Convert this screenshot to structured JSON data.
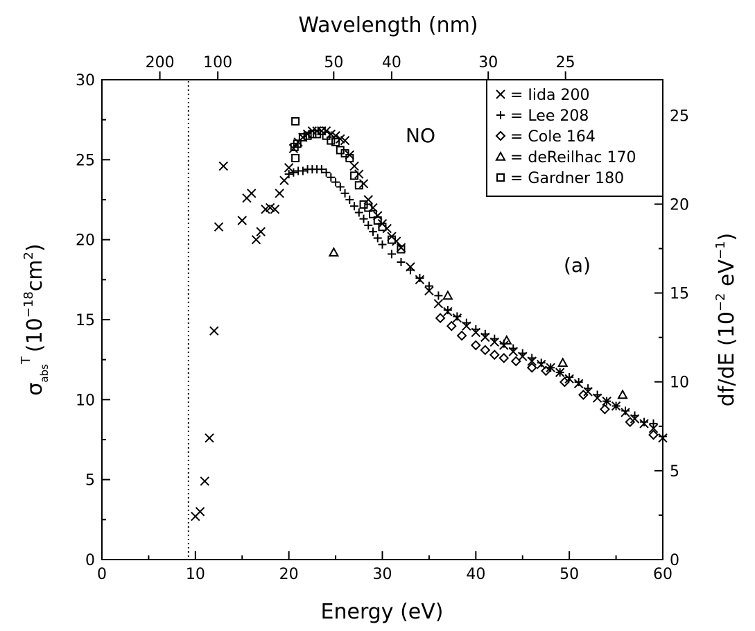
{
  "chart_data": {
    "type": "scatter",
    "xlabel": "Energy (eV)",
    "top_xlabel": "Wavelength (nm)",
    "ylabel_left": {
      "base": "σ",
      "sub": "abs",
      "sup": "T",
      "units_pre": "(10",
      "units_exp": "−18",
      "units_mid": "cm",
      "units_sq": "2",
      "units_post": ")"
    },
    "ylabel_right": {
      "pre": "df/dE (10",
      "exp1": "−2",
      "mid": " eV",
      "exp2": "−1",
      "post": ")"
    },
    "xlim": [
      0,
      60
    ],
    "ylim": [
      0,
      30
    ],
    "ylim_right": [
      0,
      27
    ],
    "x_ticks": [
      "0",
      "10",
      "20",
      "30",
      "40",
      "50",
      "60"
    ],
    "y_ticks": [
      "0",
      "5",
      "10",
      "15",
      "20",
      "25",
      "30"
    ],
    "y_right_ticks": [
      "0",
      "5",
      "10",
      "15",
      "20",
      "25"
    ],
    "top_ticks": [
      {
        "label": "200",
        "nm": 200
      },
      {
        "label": "100",
        "nm": 100
      },
      {
        "label": "50",
        "nm": 50
      },
      {
        "label": "40",
        "nm": 40
      },
      {
        "label": "30",
        "nm": 30
      },
      {
        "label": "25",
        "nm": 25
      }
    ],
    "ionization_threshold_x": 9.26,
    "annotations": {
      "molecule": "NO",
      "panel": "(a)"
    },
    "legend_placement": "top-right",
    "series": [
      {
        "name": "= Iida 200",
        "marker": "x",
        "points": [
          [
            10.0,
            2.7
          ],
          [
            10.5,
            3.0
          ],
          [
            11.0,
            4.9
          ],
          [
            11.5,
            7.6
          ],
          [
            12.0,
            14.3
          ],
          [
            12.5,
            20.8
          ],
          [
            13.0,
            24.6
          ],
          [
            15.0,
            21.2
          ],
          [
            15.5,
            22.6
          ],
          [
            16.0,
            22.9
          ],
          [
            16.5,
            20.0
          ],
          [
            17.0,
            20.5
          ],
          [
            17.5,
            21.9
          ],
          [
            18.0,
            22.0
          ],
          [
            18.5,
            21.9
          ],
          [
            19.0,
            22.9
          ],
          [
            19.5,
            23.7
          ],
          [
            20.0,
            24.5
          ],
          [
            20.5,
            25.7
          ],
          [
            21.0,
            26.1
          ],
          [
            21.5,
            26.4
          ],
          [
            22.0,
            26.6
          ],
          [
            22.5,
            26.8
          ],
          [
            23.0,
            26.8
          ],
          [
            23.5,
            26.8
          ],
          [
            24.0,
            26.8
          ],
          [
            24.5,
            26.6
          ],
          [
            25.0,
            26.5
          ],
          [
            25.5,
            26.3
          ],
          [
            26.0,
            26.2
          ],
          [
            26.5,
            25.3
          ],
          [
            27.0,
            24.6
          ],
          [
            27.5,
            24.1
          ],
          [
            28.0,
            23.5
          ],
          [
            28.5,
            22.5
          ],
          [
            29.0,
            22.0
          ],
          [
            29.5,
            21.5
          ],
          [
            30.0,
            21.0
          ],
          [
            30.5,
            20.7
          ],
          [
            31.0,
            20.2
          ],
          [
            31.5,
            19.9
          ],
          [
            32.0,
            19.5
          ],
          [
            33.0,
            18.3
          ],
          [
            34.0,
            17.5
          ],
          [
            35.0,
            16.8
          ],
          [
            36.0,
            16.0
          ],
          [
            37.0,
            15.5
          ],
          [
            38.0,
            15.1
          ],
          [
            39.0,
            14.6
          ],
          [
            40.0,
            14.2
          ],
          [
            41.0,
            13.9
          ],
          [
            42.0,
            13.6
          ],
          [
            43.0,
            13.4
          ],
          [
            44.0,
            13.0
          ],
          [
            45.0,
            12.7
          ],
          [
            46.0,
            12.4
          ],
          [
            47.0,
            12.2
          ],
          [
            48.0,
            12.0
          ],
          [
            49.0,
            11.7
          ],
          [
            50.0,
            11.3
          ],
          [
            51.0,
            11.0
          ],
          [
            52.0,
            10.5
          ],
          [
            53.0,
            10.1
          ],
          [
            54.0,
            9.9
          ],
          [
            55.0,
            9.6
          ],
          [
            56.0,
            9.2
          ],
          [
            57.0,
            8.8
          ],
          [
            58.0,
            8.5
          ],
          [
            59.0,
            8.2
          ],
          [
            60.0,
            7.6
          ]
        ]
      },
      {
        "name": "= Lee 208",
        "marker": "+",
        "points": [
          [
            20.0,
            24.1
          ],
          [
            20.5,
            24.2
          ],
          [
            21.0,
            24.3
          ],
          [
            21.5,
            24.3
          ],
          [
            22.0,
            24.4
          ],
          [
            22.5,
            24.4
          ],
          [
            23.0,
            24.4
          ],
          [
            23.5,
            24.4
          ],
          [
            24.0,
            24.2
          ],
          [
            24.5,
            23.9
          ],
          [
            25.0,
            23.6
          ],
          [
            25.5,
            23.3
          ],
          [
            26.0,
            22.9
          ],
          [
            26.5,
            22.5
          ],
          [
            27.0,
            22.1
          ],
          [
            27.5,
            21.7
          ],
          [
            28.0,
            21.3
          ],
          [
            28.5,
            20.9
          ],
          [
            29.0,
            20.5
          ],
          [
            29.5,
            20.1
          ],
          [
            30.0,
            19.7
          ],
          [
            31.0,
            19.1
          ],
          [
            32.0,
            18.6
          ],
          [
            33.0,
            18.1
          ],
          [
            34.0,
            17.6
          ],
          [
            35.0,
            17.1
          ],
          [
            36.0,
            16.5
          ],
          [
            37.0,
            15.6
          ],
          [
            38.0,
            15.2
          ],
          [
            39.0,
            14.8
          ],
          [
            40.0,
            14.4
          ],
          [
            41.0,
            14.1
          ],
          [
            42.0,
            13.8
          ],
          [
            43.0,
            13.5
          ],
          [
            44.0,
            13.2
          ],
          [
            45.0,
            12.9
          ],
          [
            46.0,
            12.6
          ],
          [
            47.0,
            12.3
          ],
          [
            48.0,
            12.0
          ],
          [
            49.0,
            11.7
          ],
          [
            50.0,
            11.4
          ],
          [
            51.0,
            11.1
          ],
          [
            52.0,
            10.7
          ],
          [
            53.0,
            10.3
          ],
          [
            54.0,
            9.9
          ],
          [
            55.0,
            9.6
          ],
          [
            56.0,
            9.3
          ],
          [
            57.0,
            9.0
          ],
          [
            58.0,
            8.6
          ],
          [
            59.0,
            8.5
          ],
          [
            60.0,
            7.7
          ]
        ]
      },
      {
        "name": "= Cole 164",
        "marker": "diamond",
        "points": [
          [
            36.2,
            15.1
          ],
          [
            37.4,
            14.6
          ],
          [
            38.5,
            14.0
          ],
          [
            40.0,
            13.4
          ],
          [
            41.0,
            13.1
          ],
          [
            42.0,
            12.8
          ],
          [
            43.0,
            12.6
          ],
          [
            44.3,
            12.4
          ],
          [
            46.0,
            12.0
          ],
          [
            47.5,
            11.8
          ],
          [
            49.5,
            11.1
          ],
          [
            51.5,
            10.3
          ],
          [
            53.8,
            9.4
          ],
          [
            56.5,
            8.6
          ],
          [
            59.0,
            7.8
          ]
        ]
      },
      {
        "name": "= deReilhac 170",
        "marker": "triangle",
        "points": [
          [
            24.8,
            19.2
          ],
          [
            37.0,
            16.5
          ],
          [
            43.3,
            13.7
          ],
          [
            49.3,
            12.3
          ],
          [
            55.7,
            10.3
          ]
        ]
      },
      {
        "name": "= Gardner 180",
        "marker": "square",
        "points": [
          [
            20.7,
            27.4
          ],
          [
            20.6,
            25.8
          ],
          [
            20.7,
            25.1
          ],
          [
            20.9,
            26.0
          ],
          [
            21.5,
            26.4
          ],
          [
            22.0,
            26.5
          ],
          [
            22.5,
            26.6
          ],
          [
            23.0,
            26.6
          ],
          [
            23.5,
            26.8
          ],
          [
            24.0,
            26.5
          ],
          [
            24.5,
            26.2
          ],
          [
            25.0,
            26.1
          ],
          [
            25.5,
            25.6
          ],
          [
            26.0,
            25.4
          ],
          [
            26.5,
            25.1
          ],
          [
            27.0,
            24.0
          ],
          [
            27.5,
            23.4
          ],
          [
            28.0,
            22.2
          ],
          [
            28.5,
            22.0
          ],
          [
            29.0,
            21.6
          ],
          [
            29.5,
            21.2
          ],
          [
            30.0,
            20.8
          ],
          [
            31.0,
            20.0
          ],
          [
            32.0,
            19.4
          ]
        ]
      }
    ]
  }
}
